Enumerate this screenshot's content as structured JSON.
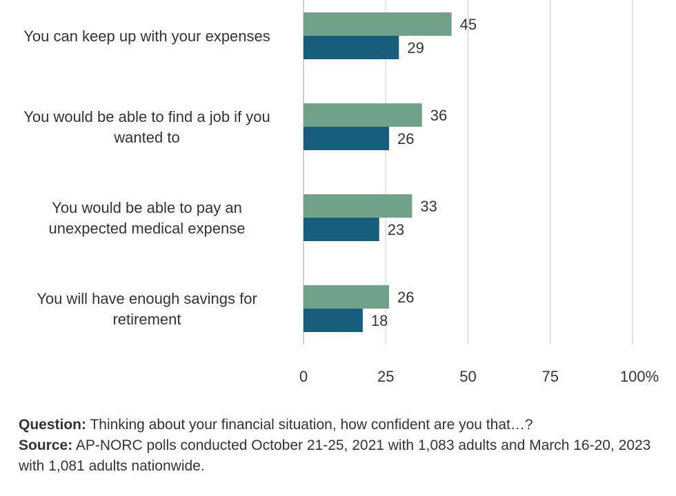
{
  "chart_data": {
    "type": "bar",
    "orientation": "horizontal",
    "categories": [
      "You can keep up with your expenses",
      "You would be able to find a job if you wanted to",
      "You would be able to pay an unexpected medical expense",
      "You will have enough savings for retirement"
    ],
    "category_lines": [
      [
        "You can keep up with your expenses"
      ],
      [
        "You would be able to find a job if you",
        "wanted to"
      ],
      [
        "You would be able to pay an",
        "unexpected medical expense"
      ],
      [
        "You will have enough savings for",
        "retirement"
      ]
    ],
    "series": [
      {
        "color": "#6fa287",
        "values": [
          45,
          36,
          33,
          26
        ]
      },
      {
        "color": "#175e7c",
        "values": [
          29,
          26,
          23,
          18
        ]
      }
    ],
    "xlim": [
      0,
      100
    ],
    "x_ticks": [
      "0",
      "25",
      "50",
      "75",
      "100%"
    ],
    "grid": true
  },
  "notes": {
    "question_label": "Question:",
    "question_text": " Thinking about your financial situation, how confident are you that…?",
    "source_label": "Source:",
    "source_text": " AP-NORC polls conducted October 21-25, 2021 with 1,083 adults and March 16-20, 2023 with 1,081 adults nationwide."
  }
}
